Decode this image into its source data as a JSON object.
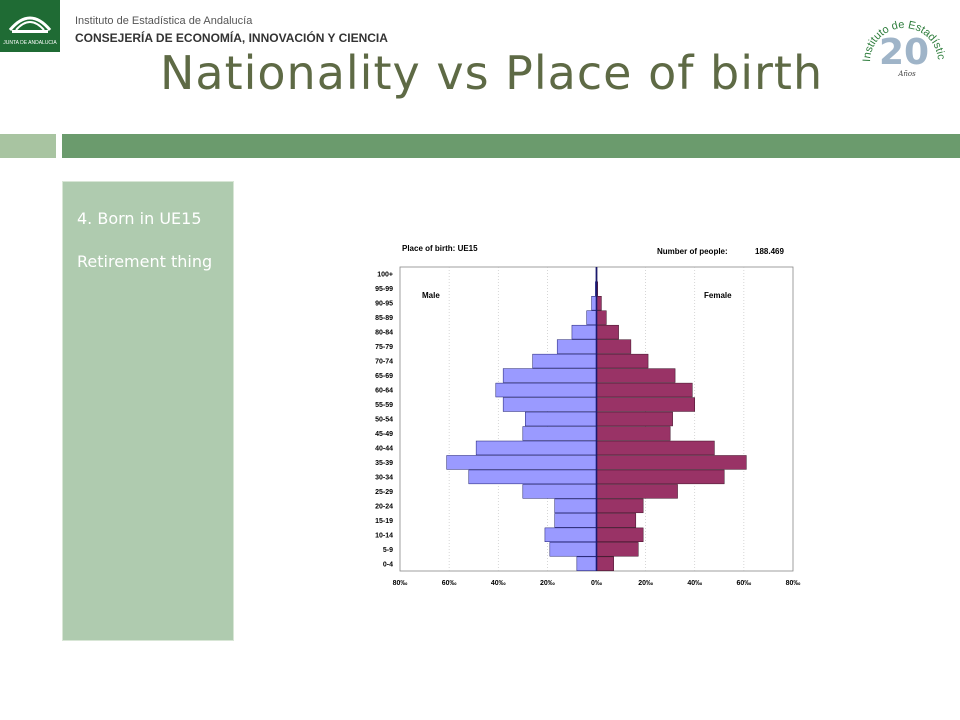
{
  "header": {
    "institute": "Instituto de Estadística de Andalucía",
    "consejeria": "CONSEJERÍA DE ECONOMÍA, INNOVACIÓN Y CIENCIA",
    "logo_left_text": "JUNTA DE ANDALUCIA",
    "logo_right_text": "Instituto de Estadística de Andalucía",
    "logo_right_years": "20",
    "logo_right_word": "Años"
  },
  "title": "Nationality vs Place of birth",
  "panel": {
    "line1": "4. Born in UE15",
    "line2": "Retirement thing"
  },
  "colors": {
    "male": "#9a9aff",
    "female": "#993366",
    "band_dark": "#6b9b6d",
    "band_light": "#a8c4a1",
    "panel": "#afcbaf",
    "title": "#5e6a45"
  },
  "chart_data": {
    "type": "bar",
    "orientation": "horizontal-population-pyramid",
    "title": "Place of birth: UE15",
    "count_label": "Number of people:",
    "count_value": "188.469",
    "male_label": "Male",
    "female_label": "Female",
    "categories": [
      "0-4",
      "5-9",
      "10-14",
      "15-19",
      "20-24",
      "25-29",
      "30-34",
      "35-39",
      "40-44",
      "45-49",
      "50-54",
      "55-59",
      "60-64",
      "65-69",
      "70-74",
      "75-79",
      "80-84",
      "85-89",
      "90-95",
      "95-99",
      "100+"
    ],
    "series": [
      {
        "name": "Male",
        "values": [
          8,
          19,
          21,
          17,
          17,
          30,
          52,
          61,
          49,
          30,
          29,
          38,
          41,
          38,
          26,
          16,
          10,
          4,
          2,
          0.5,
          0.2
        ]
      },
      {
        "name": "Female",
        "values": [
          7,
          17,
          19,
          16,
          19,
          33,
          52,
          61,
          48,
          30,
          31,
          40,
          39,
          32,
          21,
          14,
          9,
          4,
          2,
          0.5,
          0.2
        ]
      }
    ],
    "xticks": [
      "80‰",
      "60‰",
      "40‰",
      "20‰",
      "0‰",
      "20‰",
      "40‰",
      "60‰",
      "80‰"
    ],
    "xlim": [
      -80,
      80
    ],
    "grid": true
  }
}
